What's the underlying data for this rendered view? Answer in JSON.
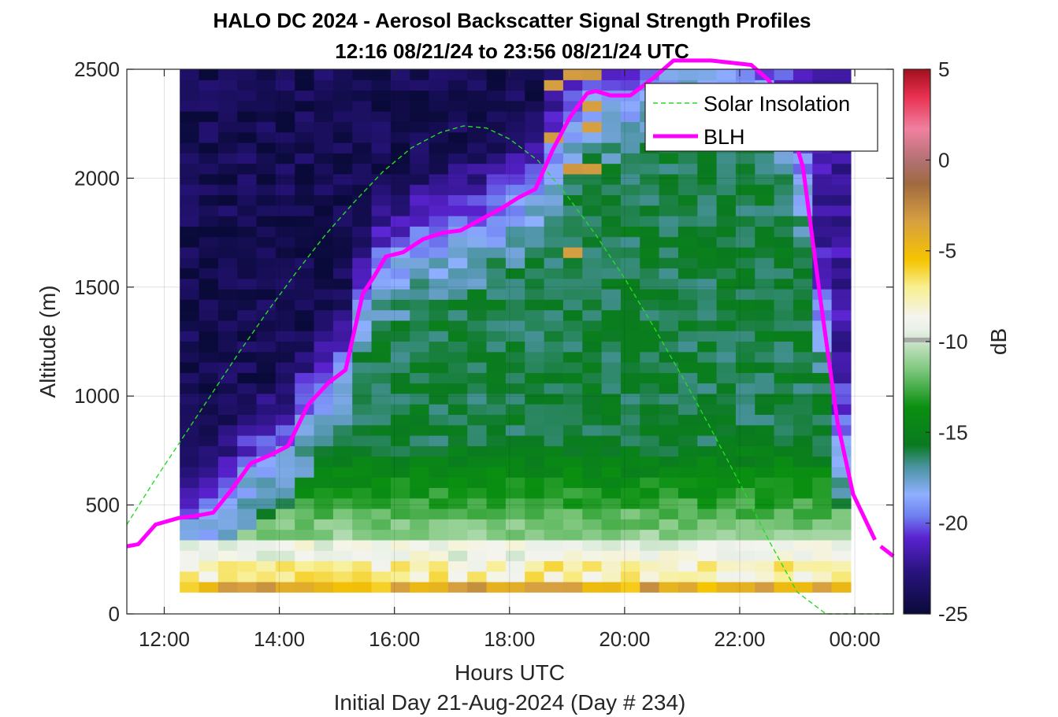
{
  "chart_data": {
    "type": "heatmap",
    "title": "HALO DC 2024 - Aerosol Backscatter Signal Strength Profiles",
    "subtitle": "12:16 08/21/24 to 23:56 08/21/24  UTC",
    "xlabel": "Hours UTC",
    "ylabel": "Altitude (m)",
    "footer": "Initial Day 21-Aug-2024 (Day # 234)",
    "xlim": [
      11.35,
      24.67
    ],
    "ylim": [
      0,
      2500
    ],
    "x_ticks": [
      {
        "value": 12,
        "label": "12:00"
      },
      {
        "value": 14,
        "label": "14:00"
      },
      {
        "value": 16,
        "label": "16:00"
      },
      {
        "value": 18,
        "label": "18:00"
      },
      {
        "value": 20,
        "label": "20:00"
      },
      {
        "value": 22,
        "label": "22:00"
      },
      {
        "value": 24,
        "label": "00:00"
      }
    ],
    "y_ticks": [
      0,
      500,
      1000,
      1500,
      2000,
      2500
    ],
    "grid": true,
    "legend_placement": "top-right",
    "colorbar": {
      "label": "dB",
      "range": [
        -25,
        5
      ],
      "ticks": [
        5,
        0,
        -5,
        -10,
        -15,
        -20,
        -25
      ]
    },
    "heatmap": {
      "x_start": 12.27,
      "x_end": 23.93,
      "bins_x": 35,
      "y_start": 100,
      "y_end": 2500,
      "bins_y": 50,
      "value_unit": "dB"
    },
    "series": [
      {
        "name": "Solar Insolation",
        "color": "#22dd22",
        "style": "dashed",
        "x": [
          11.35,
          11.8,
          12.3,
          12.8,
          13.3,
          13.8,
          14.3,
          14.8,
          15.3,
          15.8,
          16.3,
          16.8,
          17.2,
          17.6,
          18.0,
          18.5,
          19.0,
          19.5,
          20.0,
          20.5,
          21.0,
          21.5,
          22.0,
          22.5,
          23.0,
          23.5,
          23.9,
          24.67
        ],
        "y": [
          410,
          600,
          800,
          1000,
          1200,
          1390,
          1570,
          1740,
          1890,
          2030,
          2140,
          2210,
          2240,
          2230,
          2180,
          2080,
          1920,
          1740,
          1540,
          1320,
          1090,
          850,
          600,
          340,
          100,
          0,
          0,
          0
        ]
      },
      {
        "name": "BLH",
        "color": "#ff00ff",
        "style": "solid",
        "x": [
          11.35,
          11.55,
          11.85,
          12.25,
          12.55,
          12.85,
          13.2,
          13.5,
          13.85,
          14.15,
          14.5,
          14.85,
          15.15,
          15.45,
          15.65,
          15.85,
          16.15,
          16.5,
          16.85,
          17.15,
          17.5,
          17.85,
          18.15,
          18.45,
          18.75,
          19.05,
          19.35,
          19.5,
          19.75,
          20.1,
          20.5,
          20.85,
          21.5,
          22.2,
          22.5,
          22.8,
          23.1,
          23.4,
          23.7,
          23.97,
          24.35
        ],
        "y": [
          310,
          320,
          410,
          440,
          450,
          465,
          580,
          690,
          730,
          770,
          960,
          1060,
          1120,
          1470,
          1550,
          1640,
          1660,
          1720,
          1750,
          1760,
          1810,
          1860,
          1910,
          1950,
          2130,
          2280,
          2390,
          2400,
          2380,
          2380,
          2460,
          2540,
          2540,
          2520,
          2450,
          2320,
          2050,
          1450,
          880,
          550,
          340
        ]
      },
      {
        "name": "",
        "color": "#ff00ff",
        "style": "solid",
        "x": [
          24.45,
          24.67
        ],
        "y": [
          310,
          265
        ]
      }
    ]
  }
}
